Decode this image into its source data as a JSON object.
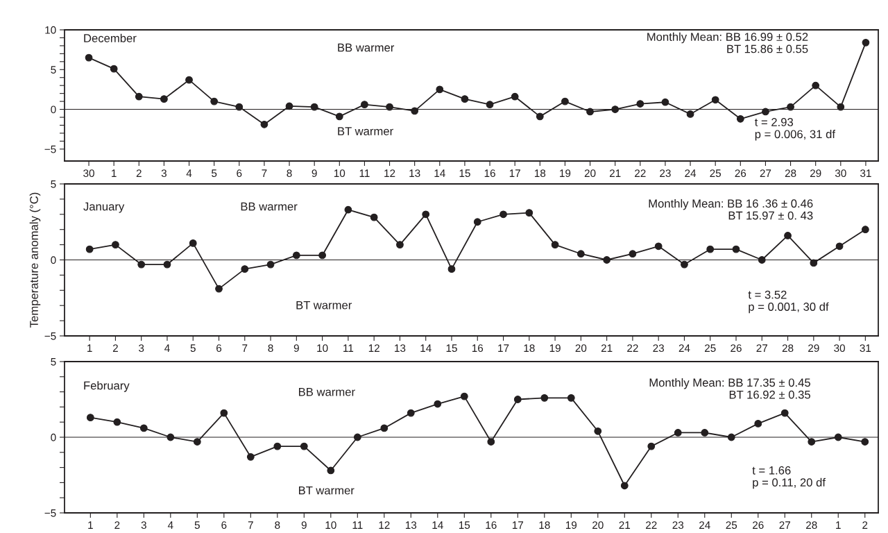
{
  "chart_data": [
    {
      "type": "line",
      "marker": "circle",
      "line_style": "solid",
      "grid": false,
      "legend": false,
      "categories": [
        "30",
        "1",
        "2",
        "3",
        "4",
        "5",
        "6",
        "7",
        "8",
        "9",
        "10",
        "11",
        "12",
        "13",
        "14",
        "15",
        "16",
        "17",
        "18",
        "19",
        "20",
        "21",
        "22",
        "23",
        "24",
        "25",
        "26",
        "27",
        "28",
        "29",
        "30",
        "31"
      ],
      "series": [
        {
          "color": "#231f20",
          "values": [
            6.5,
            5.1,
            1.6,
            1.3,
            3.7,
            1.0,
            0.3,
            -1.9,
            0.4,
            0.3,
            -0.9,
            0.6,
            0.3,
            -0.2,
            2.5,
            1.3,
            0.6,
            1.6,
            -0.9,
            1.0,
            -0.3,
            0.0,
            0.7,
            0.9,
            -0.6,
            1.2,
            -1.2,
            -0.3,
            0.3,
            3.0,
            0.3,
            8.4
          ]
        }
      ],
      "ylim": [
        -6.5,
        10
      ],
      "yticks": [
        -5,
        {
          "value": -4,
          "label": null
        },
        {
          "value": -3,
          "label": null
        },
        {
          "value": -2,
          "label": null
        },
        {
          "value": -1,
          "label": null
        },
        0,
        {
          "value": 1,
          "label": null
        },
        {
          "value": 2,
          "label": null
        },
        {
          "value": 3,
          "label": null
        },
        {
          "value": 4,
          "label": null
        },
        5,
        {
          "value": 6,
          "label": null
        },
        {
          "value": 7,
          "label": null
        },
        {
          "value": 8,
          "label": null
        },
        {
          "value": 9,
          "label": null
        },
        10
      ],
      "ref_lines": [
        {
          "axis": "y",
          "value": 0,
          "color": "#231f20"
        }
      ],
      "annotations": [
        "December",
        "BB warmer",
        "BT warmer",
        "Monthly Mean: BB 16.99 ± 0.52\nBT 15.86 ± 0.55",
        "t = 2.93\np = 0.006, 31 df"
      ]
    },
    {
      "type": "line",
      "marker": "circle",
      "line_style": "solid",
      "grid": false,
      "legend": false,
      "ylabel": "Temperature anomaly (°C)",
      "categories": [
        "1",
        "2",
        "3",
        "4",
        "5",
        "6",
        "7",
        "8",
        "9",
        "10",
        "11",
        "12",
        "13",
        "14",
        "15",
        "16",
        "17",
        "18",
        "19",
        "20",
        "21",
        "22",
        "23",
        "24",
        "25",
        "26",
        "27",
        "28",
        "29",
        "30",
        "31"
      ],
      "series": [
        {
          "color": "#231f20",
          "values": [
            0.7,
            1.0,
            -0.3,
            -0.3,
            1.1,
            -1.9,
            -0.6,
            -0.3,
            0.3,
            0.3,
            3.3,
            2.8,
            1.0,
            3.0,
            -0.6,
            2.5,
            3.0,
            3.1,
            1.0,
            0.4,
            0.0,
            0.4,
            0.9,
            -0.3,
            0.7,
            0.7,
            0.0,
            1.6,
            -0.2,
            0.9,
            2.0
          ]
        }
      ],
      "ylim": [
        -5,
        5
      ],
      "yticks": [
        -5,
        {
          "value": -4,
          "label": null
        },
        {
          "value": -3,
          "label": null
        },
        {
          "value": -2,
          "label": null
        },
        {
          "value": -1,
          "label": null
        },
        0,
        {
          "value": 1,
          "label": null
        },
        {
          "value": 2,
          "label": null
        },
        {
          "value": 3,
          "label": null
        },
        {
          "value": 4,
          "label": null
        },
        5
      ],
      "ref_lines": [
        {
          "axis": "y",
          "value": 0,
          "color": "#231f20"
        }
      ],
      "annotations": [
        "January",
        "BB warmer",
        "BT warmer",
        "Monthly Mean: BB 16 .36 ± 0.46\nBT 15.97 ± 0. 43",
        "t = 3.52\np = 0.001, 30 df"
      ]
    },
    {
      "type": "line",
      "marker": "circle",
      "line_style": "solid",
      "grid": false,
      "legend": false,
      "categories": [
        "1",
        "2",
        "3",
        "4",
        "5",
        "6",
        "7",
        "8",
        "9",
        "10",
        "11",
        "12",
        "13",
        "14",
        "15",
        "16",
        "17",
        "18",
        "19",
        "20",
        "21",
        "22",
        "23",
        "24",
        "25",
        "26",
        "27",
        "28",
        "1",
        "2"
      ],
      "series": [
        {
          "color": "#231f20",
          "values": [
            1.3,
            1.0,
            0.6,
            0.0,
            -0.3,
            1.6,
            -1.3,
            -0.6,
            -0.6,
            -2.2,
            0.0,
            0.6,
            1.6,
            2.2,
            2.7,
            -0.3,
            2.5,
            2.6,
            2.6,
            0.4,
            -3.2,
            -0.6,
            0.3,
            0.3,
            0.0,
            0.9,
            1.6,
            -0.3,
            0.0,
            -0.3
          ]
        }
      ],
      "ylim": [
        -5,
        5
      ],
      "yticks": [
        -5,
        {
          "value": -4,
          "label": null
        },
        {
          "value": -3,
          "label": null
        },
        {
          "value": -2,
          "label": null
        },
        {
          "value": -1,
          "label": null
        },
        0,
        {
          "value": 1,
          "label": null
        },
        {
          "value": 2,
          "label": null
        },
        {
          "value": 3,
          "label": null
        },
        {
          "value": 4,
          "label": null
        },
        5
      ],
      "ref_lines": [
        {
          "axis": "y",
          "value": 0,
          "color": "#231f20"
        }
      ],
      "annotations": [
        "February",
        "BB warmer",
        "BT warmer",
        "Monthly Mean: BB 17.35 ± 0.45\nBT 16.92 ± 0.35",
        "t = 1.66\np = 0.11, 20 df"
      ]
    }
  ]
}
